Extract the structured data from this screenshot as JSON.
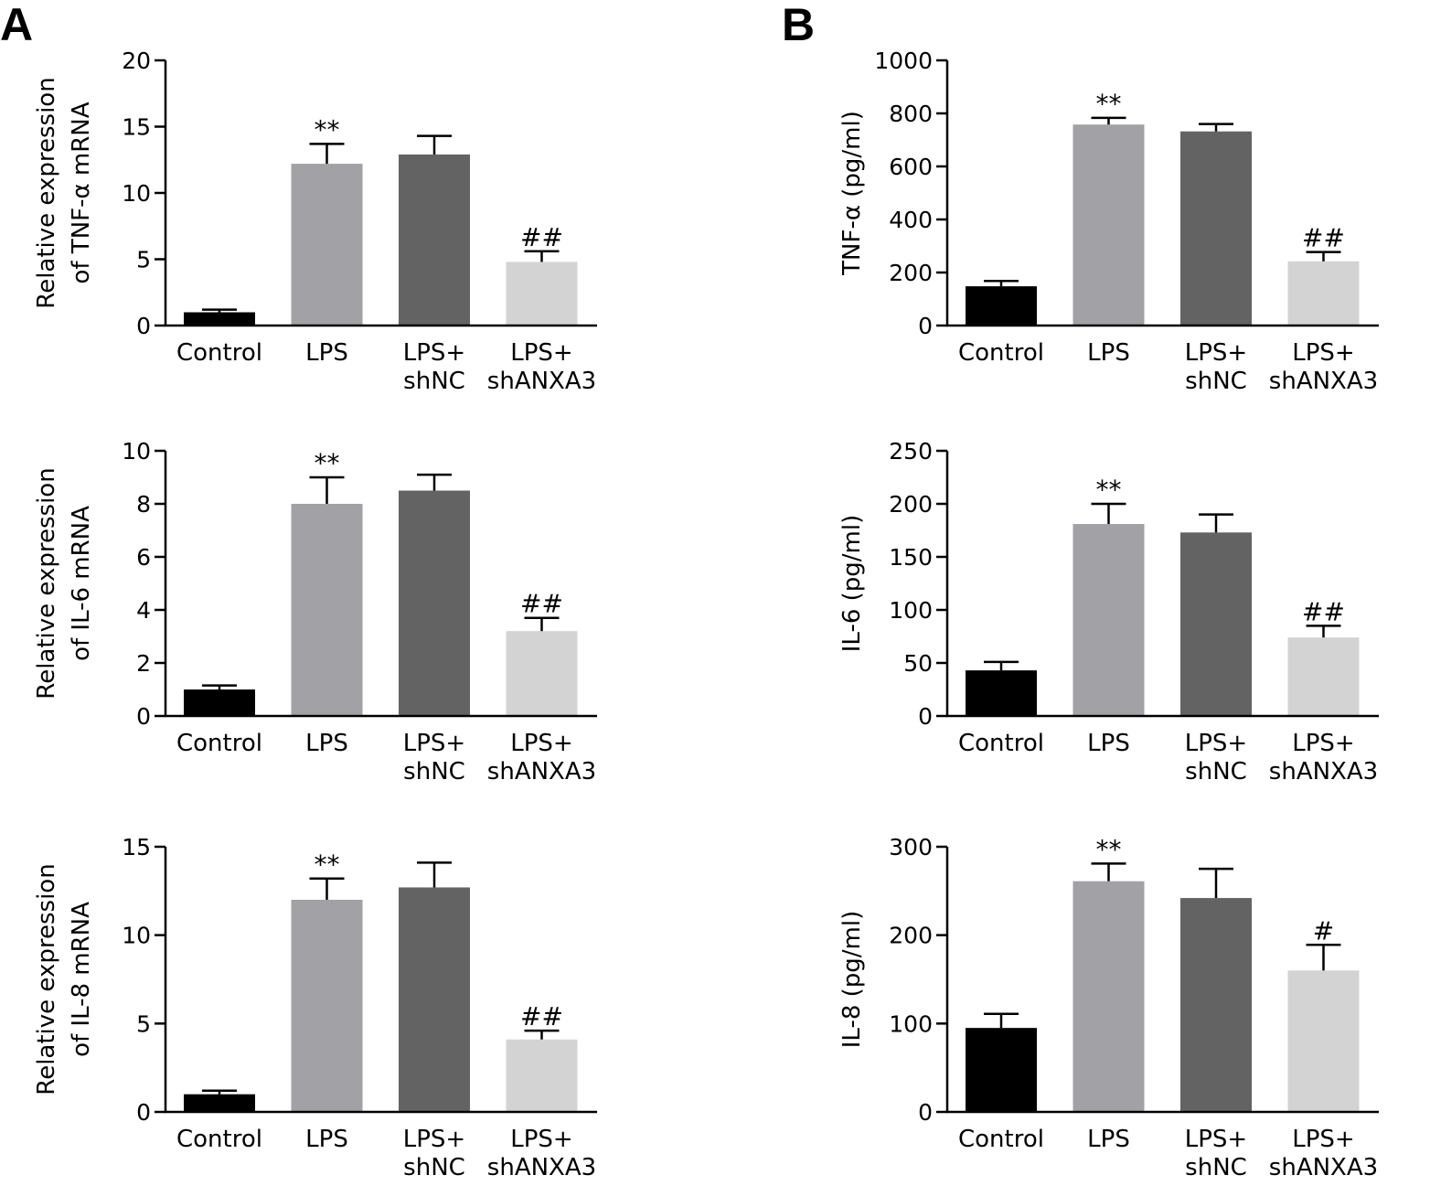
{
  "panels": [
    {
      "label": "A"
    },
    {
      "label": "B"
    }
  ],
  "colors": {
    "Control": "#000000",
    "LPS": "#a2a2a6",
    "LPS+shNC": "#636363",
    "LPS+shANXA3": "#d3d3d3",
    "axis": "#000000"
  },
  "chart_data": [
    {
      "type": "bar",
      "panel": "A",
      "ylabel": [
        "Relative expression",
        "of TNF-α mRNA"
      ],
      "xlabel": "",
      "categories": [
        [
          "Control"
        ],
        [
          "LPS"
        ],
        [
          "LPS+",
          "shNC"
        ],
        [
          "LPS+",
          "shANXA3"
        ]
      ],
      "values": [
        1.0,
        12.2,
        12.9,
        4.8
      ],
      "errors": [
        0.2,
        1.5,
        1.4,
        0.8
      ],
      "annotations": [
        "",
        "**",
        "",
        "##"
      ],
      "ylim": [
        0,
        20
      ],
      "yticks": [
        0,
        5,
        10,
        15,
        20
      ]
    },
    {
      "type": "bar",
      "panel": "A",
      "ylabel": [
        "Relative expression",
        "of IL-6 mRNA"
      ],
      "xlabel": "",
      "categories": [
        [
          "Control"
        ],
        [
          "LPS"
        ],
        [
          "LPS+",
          "shNC"
        ],
        [
          "LPS+",
          "shANXA3"
        ]
      ],
      "values": [
        1.0,
        8.0,
        8.5,
        3.2
      ],
      "errors": [
        0.15,
        1.0,
        0.6,
        0.5
      ],
      "annotations": [
        "",
        "**",
        "",
        "##"
      ],
      "ylim": [
        0,
        10
      ],
      "yticks": [
        0,
        2,
        4,
        6,
        8,
        10
      ]
    },
    {
      "type": "bar",
      "panel": "A",
      "ylabel": [
        "Relative expression",
        "of IL-8 mRNA"
      ],
      "xlabel": "",
      "categories": [
        [
          "Control"
        ],
        [
          "LPS"
        ],
        [
          "LPS+",
          "shNC"
        ],
        [
          "LPS+",
          "shANXA3"
        ]
      ],
      "values": [
        1.0,
        12.0,
        12.7,
        4.1
      ],
      "errors": [
        0.2,
        1.2,
        1.4,
        0.5
      ],
      "annotations": [
        "",
        "**",
        "",
        "##"
      ],
      "ylim": [
        0,
        15
      ],
      "yticks": [
        0,
        5,
        10,
        15
      ]
    },
    {
      "type": "bar",
      "panel": "B",
      "ylabel": [
        "TNF-α (pg/ml)"
      ],
      "xlabel": "",
      "categories": [
        [
          "Control"
        ],
        [
          "LPS"
        ],
        [
          "LPS+",
          "shNC"
        ],
        [
          "LPS+",
          "shANXA3"
        ]
      ],
      "values": [
        148,
        758,
        732,
        242
      ],
      "errors": [
        20,
        25,
        28,
        35
      ],
      "annotations": [
        "",
        "**",
        "",
        "##"
      ],
      "ylim": [
        0,
        1000
      ],
      "yticks": [
        0,
        200,
        400,
        600,
        800,
        1000
      ]
    },
    {
      "type": "bar",
      "panel": "B",
      "ylabel": [
        "IL-6 (pg/ml)"
      ],
      "xlabel": "",
      "categories": [
        [
          "Control"
        ],
        [
          "LPS"
        ],
        [
          "LPS+",
          "shNC"
        ],
        [
          "LPS+",
          "shANXA3"
        ]
      ],
      "values": [
        43,
        181,
        173,
        74
      ],
      "errors": [
        8,
        19,
        17,
        11
      ],
      "annotations": [
        "",
        "**",
        "",
        "##"
      ],
      "ylim": [
        0,
        250
      ],
      "yticks": [
        0,
        50,
        100,
        150,
        200,
        250
      ]
    },
    {
      "type": "bar",
      "panel": "B",
      "ylabel": [
        "IL-8 (pg/ml)"
      ],
      "xlabel": "",
      "categories": [
        [
          "Control"
        ],
        [
          "LPS"
        ],
        [
          "LPS+",
          "shNC"
        ],
        [
          "LPS+",
          "shANXA3"
        ]
      ],
      "values": [
        95,
        261,
        242,
        160
      ],
      "errors": [
        16,
        20,
        33,
        29
      ],
      "annotations": [
        "",
        "**",
        "",
        "#"
      ],
      "ylim": [
        0,
        300
      ],
      "yticks": [
        0,
        100,
        200,
        300
      ]
    }
  ]
}
